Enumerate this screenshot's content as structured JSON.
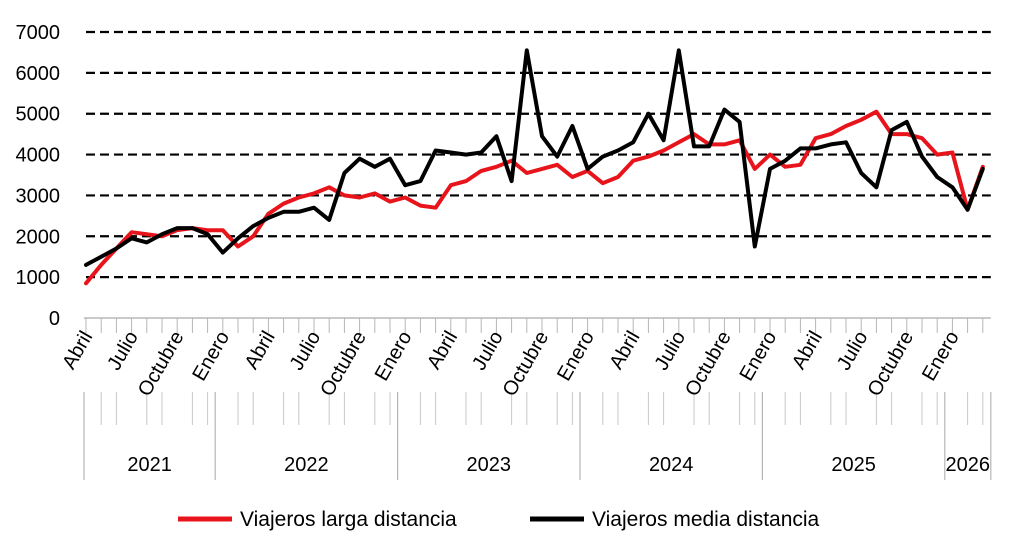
{
  "chart_data": {
    "type": "line",
    "title": "",
    "xlabel": "",
    "ylabel": "",
    "ylim": [
      0,
      7000
    ],
    "yticks": [
      0,
      1000,
      2000,
      3000,
      4000,
      5000,
      6000,
      7000
    ],
    "grid": "horizontal dashed",
    "legend_position": "bottom",
    "x": [
      "2021-04",
      "2021-05",
      "2021-06",
      "2021-07",
      "2021-08",
      "2021-09",
      "2021-10",
      "2021-11",
      "2021-12",
      "2022-01",
      "2022-02",
      "2022-03",
      "2022-04",
      "2022-05",
      "2022-06",
      "2022-07",
      "2022-08",
      "2022-09",
      "2022-10",
      "2022-11",
      "2022-12",
      "2023-01",
      "2023-02",
      "2023-03",
      "2023-04",
      "2023-05",
      "2023-06",
      "2023-07",
      "2023-08",
      "2023-09",
      "2023-10",
      "2023-11",
      "2023-12",
      "2024-01",
      "2024-02",
      "2024-03",
      "2024-04",
      "2024-05",
      "2024-06",
      "2024-07",
      "2024-08",
      "2024-09",
      "2024-10",
      "2024-11",
      "2024-12",
      "2025-01",
      "2025-02",
      "2025-03",
      "2025-04",
      "2025-05",
      "2025-06",
      "2025-07",
      "2025-08",
      "2025-09",
      "2025-10",
      "2025-11",
      "2025-12",
      "2026-01",
      "2026-02",
      "2026-03"
    ],
    "month_labels": [
      {
        "label": "Abril",
        "index": 0
      },
      {
        "label": "Julio",
        "index": 3
      },
      {
        "label": "Octubre",
        "index": 6
      },
      {
        "label": "Enero",
        "index": 9
      },
      {
        "label": "Abril",
        "index": 12
      },
      {
        "label": "Julio",
        "index": 15
      },
      {
        "label": "Octubre",
        "index": 18
      },
      {
        "label": "Enero",
        "index": 21
      },
      {
        "label": "Abril",
        "index": 24
      },
      {
        "label": "Julio",
        "index": 27
      },
      {
        "label": "Octubre",
        "index": 30
      },
      {
        "label": "Enero",
        "index": 33
      },
      {
        "label": "Abril",
        "index": 36
      },
      {
        "label": "Julio",
        "index": 39
      },
      {
        "label": "Octubre",
        "index": 42
      },
      {
        "label": "Enero",
        "index": 45
      },
      {
        "label": "Abril",
        "index": 48
      },
      {
        "label": "Julio",
        "index": 51
      },
      {
        "label": "Octubre",
        "index": 54
      },
      {
        "label": "Enero",
        "index": 57
      }
    ],
    "years": [
      {
        "label": "2021",
        "start": 0,
        "end": 8
      },
      {
        "label": "2022",
        "start": 9,
        "end": 20
      },
      {
        "label": "2023",
        "start": 21,
        "end": 32
      },
      {
        "label": "2024",
        "start": 33,
        "end": 44
      },
      {
        "label": "2025",
        "start": 45,
        "end": 56
      },
      {
        "label": "2026",
        "start": 57,
        "end": 59
      }
    ],
    "series": [
      {
        "name": "Viajeros larga distancia",
        "color": "#e8141b",
        "values": [
          850,
          1300,
          1700,
          2100,
          2050,
          2000,
          2150,
          2200,
          2150,
          2150,
          1750,
          2000,
          2550,
          2800,
          2950,
          3050,
          3200,
          3000,
          2950,
          3050,
          2850,
          2950,
          2750,
          2700,
          3250,
          3350,
          3600,
          3700,
          3850,
          3550,
          3650,
          3750,
          3450,
          3600,
          3300,
          3450,
          3850,
          3950,
          4100,
          4300,
          4500,
          4250,
          4250,
          4350,
          3650,
          4000,
          3700,
          3750,
          4400,
          4500,
          4700,
          4850,
          5050,
          4500,
          4500,
          4400,
          4000,
          4050,
          2650,
          3700
        ]
      },
      {
        "name": "Viajeros media distancia",
        "color": "#000000",
        "values": [
          1300,
          1500,
          1700,
          1950,
          1850,
          2050,
          2200,
          2200,
          2050,
          1600,
          1950,
          2250,
          2450,
          2600,
          2600,
          2700,
          2400,
          3550,
          3900,
          3700,
          3900,
          3250,
          3350,
          4100,
          4050,
          4000,
          4050,
          4450,
          3350,
          6550,
          4450,
          3950,
          4700,
          3650,
          3950,
          4100,
          4300,
          5000,
          4350,
          6550,
          4200,
          4200,
          5100,
          4800,
          1750,
          3650,
          3850,
          4150,
          4150,
          4250,
          4300,
          3550,
          3200,
          4600,
          4800,
          3950,
          3450,
          3200,
          2650,
          3650
        ]
      }
    ]
  }
}
